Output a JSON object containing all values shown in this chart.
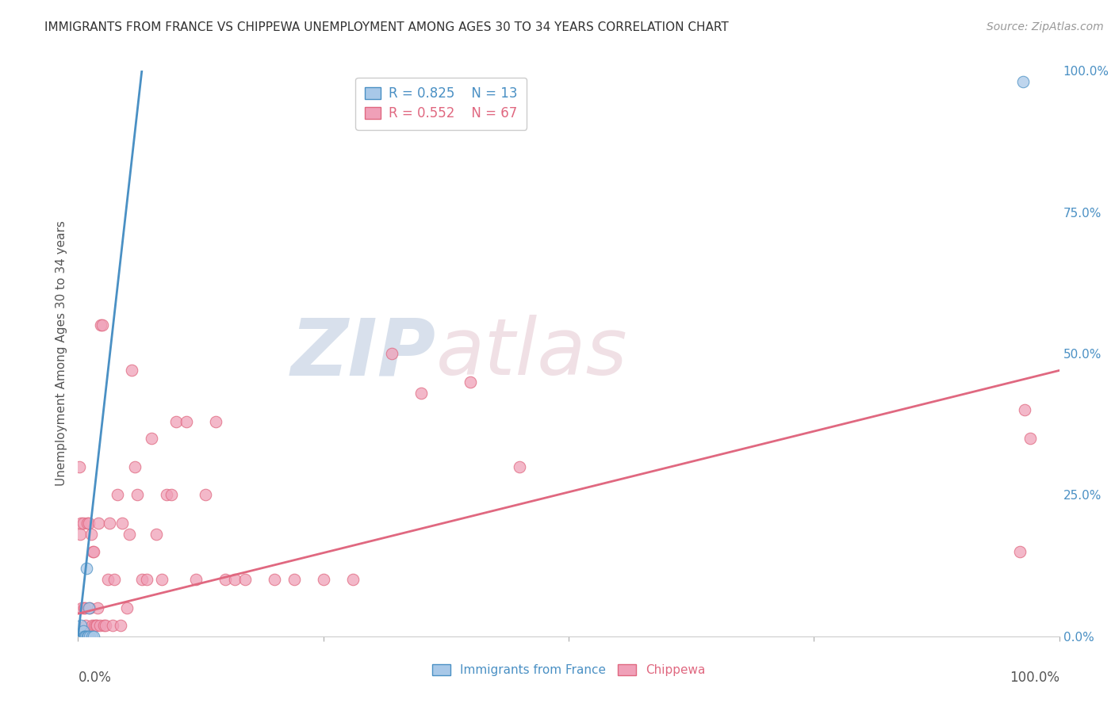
{
  "title": "IMMIGRANTS FROM FRANCE VS CHIPPEWA UNEMPLOYMENT AMONG AGES 30 TO 34 YEARS CORRELATION CHART",
  "source": "Source: ZipAtlas.com",
  "ylabel": "Unemployment Among Ages 30 to 34 years",
  "ytick_values": [
    0,
    25,
    50,
    75,
    100
  ],
  "ytick_labels": [
    "0.0%",
    "25.0%",
    "50.0%",
    "75.0%",
    "100.0%"
  ],
  "xtick_values": [
    0,
    25,
    50,
    75,
    100
  ],
  "blue_color": "#a8c8e8",
  "pink_color": "#f0a0b8",
  "blue_line_color": "#4a90c4",
  "pink_line_color": "#e06880",
  "blue_scatter_x": [
    0.3,
    0.5,
    0.6,
    0.7,
    0.8,
    0.85,
    0.9,
    1.0,
    1.1,
    1.2,
    1.4,
    1.6,
    96.3
  ],
  "blue_scatter_y": [
    2.0,
    1.0,
    0.0,
    0.0,
    0.0,
    12.0,
    0.0,
    0.0,
    5.0,
    0.0,
    0.0,
    0.0,
    98.0
  ],
  "pink_scatter_x": [
    0.1,
    0.2,
    0.3,
    0.4,
    0.5,
    0.6,
    0.7,
    0.8,
    0.9,
    1.0,
    1.1,
    1.2,
    1.3,
    1.4,
    1.5,
    1.6,
    1.7,
    1.8,
    1.9,
    2.0,
    2.1,
    2.2,
    2.3,
    2.5,
    2.6,
    2.8,
    3.0,
    3.2,
    3.5,
    3.7,
    4.0,
    4.3,
    4.5,
    5.0,
    5.2,
    5.5,
    5.8,
    6.0,
    6.5,
    7.0,
    7.5,
    8.0,
    8.5,
    9.0,
    9.5,
    10.0,
    11.0,
    12.0,
    13.0,
    14.0,
    15.0,
    16.0,
    17.0,
    20.0,
    22.0,
    25.0,
    28.0,
    32.0,
    35.0,
    40.0,
    45.0,
    96.0,
    96.5,
    97.0
  ],
  "pink_scatter_y": [
    30.0,
    18.0,
    20.0,
    5.0,
    20.0,
    5.0,
    5.0,
    2.0,
    20.0,
    0.0,
    20.0,
    5.0,
    18.0,
    2.0,
    15.0,
    15.0,
    2.0,
    2.0,
    2.0,
    5.0,
    20.0,
    2.0,
    55.0,
    55.0,
    2.0,
    2.0,
    10.0,
    20.0,
    2.0,
    10.0,
    25.0,
    2.0,
    20.0,
    5.0,
    18.0,
    47.0,
    30.0,
    25.0,
    10.0,
    10.0,
    35.0,
    18.0,
    10.0,
    25.0,
    25.0,
    38.0,
    38.0,
    10.0,
    25.0,
    38.0,
    10.0,
    10.0,
    10.0,
    10.0,
    10.0,
    10.0,
    10.0,
    50.0,
    43.0,
    45.0,
    30.0,
    15.0,
    40.0,
    35.0
  ],
  "blue_line_x": [
    0.0,
    6.5
  ],
  "blue_line_y": [
    0.0,
    100.0
  ],
  "pink_line_x": [
    0.0,
    100.0
  ],
  "pink_line_y": [
    4.0,
    47.0
  ],
  "watermark_zip": "ZIP",
  "watermark_atlas": "atlas",
  "background_color": "#ffffff",
  "grid_color": "#d8d8d8"
}
